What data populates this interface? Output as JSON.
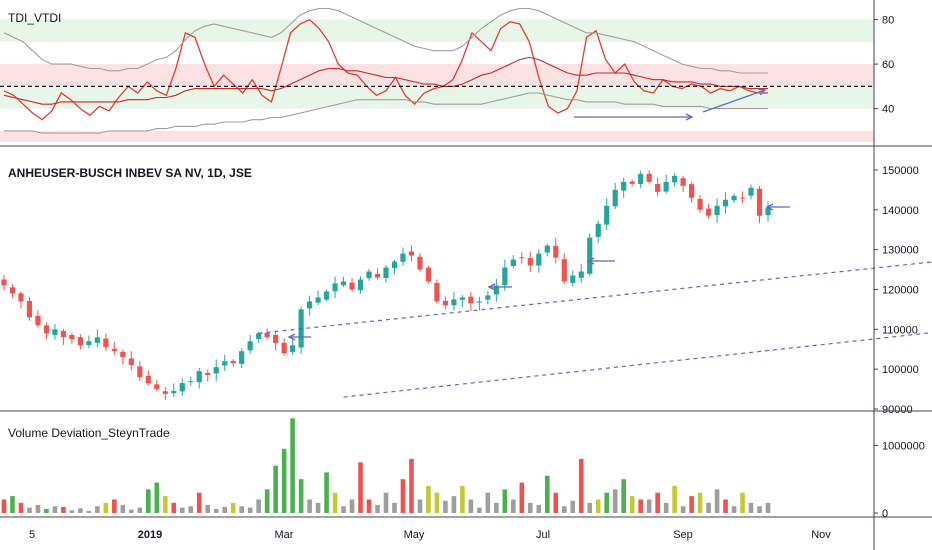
{
  "chart_data": [
    {
      "pane": "tdi",
      "type": "line",
      "title": "TDI_VTDI",
      "ylim": [
        25,
        87
      ],
      "y_ticks": [
        40,
        60,
        80
      ],
      "dashed_level": 50,
      "bands_green": [
        [
          70,
          80
        ],
        [
          40,
          50
        ]
      ],
      "bands_red": [
        [
          50,
          60
        ],
        [
          25,
          30
        ]
      ],
      "series": [
        {
          "color": "#e53935",
          "values": [
            48,
            46,
            42,
            38,
            35,
            39,
            47,
            44,
            40,
            37,
            41,
            39,
            45,
            50,
            47,
            52,
            48,
            46,
            58,
            74,
            72,
            60,
            50,
            55,
            51,
            47,
            53,
            46,
            43,
            58,
            74,
            78,
            80,
            76,
            70,
            60,
            56,
            55,
            50,
            46,
            48,
            54,
            46,
            42,
            47,
            49,
            50,
            53,
            62,
            74,
            70,
            66,
            76,
            79,
            78,
            70,
            54,
            41,
            38,
            40,
            48,
            72,
            75,
            62,
            56,
            60,
            52,
            48,
            47,
            53,
            50,
            49,
            51,
            50,
            47,
            49,
            48,
            50,
            48,
            47,
            47
          ]
        },
        {
          "color": "#c62828",
          "values": [
            46,
            45,
            44,
            43,
            42,
            42,
            43,
            43,
            43,
            43,
            43,
            43,
            43,
            44,
            44,
            44,
            45,
            45,
            46,
            48,
            49,
            49,
            49,
            49,
            49,
            49,
            49,
            49,
            48,
            49,
            51,
            53,
            55,
            57,
            58,
            58,
            57,
            57,
            56,
            55,
            54,
            54,
            53,
            52,
            51,
            51,
            50,
            50,
            51,
            53,
            55,
            56,
            58,
            60,
            62,
            63,
            62,
            60,
            58,
            56,
            55,
            55,
            56,
            56,
            56,
            56,
            55,
            54,
            53,
            53,
            52,
            52,
            52,
            51,
            51,
            50,
            50,
            50,
            49,
            49,
            49
          ]
        },
        {
          "color": "#9e9e9e",
          "values": [
            74,
            72,
            70,
            66,
            62,
            60,
            60,
            60,
            59,
            58,
            58,
            57,
            57,
            58,
            58,
            60,
            62,
            63,
            66,
            71,
            75,
            77,
            78,
            77,
            76,
            75,
            74,
            73,
            72,
            74,
            78,
            82,
            84,
            85,
            85,
            84,
            82,
            80,
            78,
            76,
            74,
            72,
            70,
            68,
            67,
            66,
            66,
            66,
            68,
            72,
            76,
            79,
            82,
            84,
            85,
            85,
            84,
            82,
            80,
            78,
            76,
            74,
            74,
            73,
            72,
            71,
            70,
            68,
            66,
            64,
            62,
            60,
            59,
            58,
            58,
            57,
            57,
            56,
            56,
            56,
            56
          ]
        },
        {
          "color": "#9e9e9e",
          "values": [
            30,
            30,
            30,
            30,
            29,
            29,
            29,
            29,
            29,
            29,
            29,
            30,
            30,
            30,
            30,
            30,
            31,
            31,
            32,
            32,
            32,
            33,
            33,
            34,
            34,
            34,
            35,
            35,
            36,
            36,
            37,
            38,
            39,
            40,
            41,
            42,
            43,
            44,
            44,
            44,
            44,
            44,
            44,
            43,
            43,
            42,
            42,
            42,
            42,
            42,
            42,
            43,
            44,
            45,
            46,
            47,
            47,
            46,
            45,
            44,
            44,
            43,
            43,
            43,
            43,
            42,
            42,
            42,
            42,
            41,
            41,
            41,
            41,
            41,
            40,
            40,
            40,
            40,
            40,
            40,
            40
          ]
        }
      ],
      "annotations": [
        "arrow-bottom-horizontal",
        "arrow-rising-divergence"
      ]
    },
    {
      "pane": "price",
      "type": "candlestick",
      "title": "ANHEUSER-BUSCH INBEV SA NV, 1D, JSE",
      "ylim": [
        90000,
        155000
      ],
      "y_ticks": [
        90000,
        100000,
        110000,
        120000,
        130000,
        140000,
        150000
      ],
      "x_labels": [
        "5",
        "2019",
        "Mar",
        "May",
        "Jul",
        "Sep",
        "Nov"
      ],
      "up_color": "#26a69a",
      "down_color": "#ef5350",
      "closes": [
        121000,
        119000,
        117000,
        113000,
        111000,
        109000,
        110000,
        108000,
        107500,
        106000,
        107000,
        108000,
        105500,
        104500,
        103000,
        101000,
        98000,
        96500,
        95000,
        93800,
        94500,
        96500,
        97000,
        99500,
        98500,
        100500,
        102000,
        101500,
        104500,
        107000,
        109000,
        108000,
        106500,
        104000,
        106000,
        115000,
        117000,
        118000,
        119500,
        121500,
        122000,
        120000,
        122500,
        124500,
        123000,
        125500,
        127000,
        129000,
        128500,
        125000,
        122000,
        117000,
        116000,
        117500,
        118000,
        116500,
        117000,
        118500,
        121000,
        125500,
        127500,
        128000,
        126000,
        129000,
        131000,
        128000,
        122000,
        123500,
        124500,
        133000,
        136500,
        141000,
        145000,
        147000,
        146500,
        149000,
        147000,
        144500,
        147000,
        148500,
        146000,
        143000,
        140000,
        138500,
        141000,
        142500,
        143500,
        143000,
        145500,
        138500,
        140500
      ],
      "channel": {
        "upper": [
          [
            30,
            109000
          ],
          [
            225,
            153000
          ]
        ],
        "lower": [
          [
            40,
            93000
          ],
          [
            250,
            142000
          ]
        ]
      },
      "annotations": [
        "arrow-mar",
        "arrow-jun",
        "arrow-jul",
        "arrow-current"
      ]
    },
    {
      "pane": "volume",
      "type": "bar",
      "title": "Volume Deviation_SteynTrade",
      "ylim": [
        0,
        1450000
      ],
      "y_ticks": [
        0,
        1000000
      ],
      "values": [
        200000,
        250000,
        150000,
        80000,
        120000,
        60000,
        100000,
        90000,
        40000,
        70000,
        30000,
        100000,
        150000,
        200000,
        120000,
        50000,
        80000,
        350000,
        450000,
        250000,
        150000,
        80000,
        100000,
        300000,
        120000,
        60000,
        90000,
        150000,
        100000,
        80000,
        200000,
        350000,
        700000,
        950000,
        1400000,
        500000,
        200000,
        150000,
        600000,
        300000,
        100000,
        200000,
        750000,
        200000,
        120000,
        300000,
        150000,
        500000,
        800000,
        200000,
        400000,
        300000,
        180000,
        250000,
        400000,
        200000,
        80000,
        300000,
        150000,
        350000,
        200000,
        450000,
        150000,
        120000,
        550000,
        300000,
        100000,
        180000,
        800000,
        150000,
        200000,
        300000,
        350000,
        500000,
        250000,
        200000,
        200000,
        300000,
        150000,
        400000,
        100000,
        250000,
        300000,
        150000,
        350000,
        200000,
        100000,
        300000,
        150000,
        100000,
        150000
      ],
      "colors": [
        "#ef5350",
        "#4caf50",
        "#ef5350",
        "#9e9e9e",
        "#9e9e9e",
        "#4caf50",
        "#9e9e9e",
        "#ef5350",
        "#9e9e9e",
        "#9e9e9e",
        "#9e9e9e",
        "#9e9e9e",
        "#c0ca33",
        "#ef5350",
        "#9e9e9e",
        "#9e9e9e",
        "#9e9e9e",
        "#4caf50",
        "#4caf50",
        "#c0ca33",
        "#ef5350",
        "#9e9e9e",
        "#9e9e9e",
        "#ef5350",
        "#9e9e9e",
        "#9e9e9e",
        "#9e9e9e",
        "#c0ca33",
        "#9e9e9e",
        "#9e9e9e",
        "#9e9e9e",
        "#4caf50",
        "#4caf50",
        "#4caf50",
        "#4caf50",
        "#4caf50",
        "#9e9e9e",
        "#9e9e9e",
        "#4caf50",
        "#c0ca33",
        "#9e9e9e",
        "#9e9e9e",
        "#ef5350",
        "#ef5350",
        "#9e9e9e",
        "#9e9e9e",
        "#9e9e9e",
        "#ef5350",
        "#ef5350",
        "#9e9e9e",
        "#c0ca33",
        "#c0ca33",
        "#9e9e9e",
        "#9e9e9e",
        "#c0ca33",
        "#9e9e9e",
        "#9e9e9e",
        "#9e9e9e",
        "#9e9e9e",
        "#4caf50",
        "#9e9e9e",
        "#ef5350",
        "#9e9e9e",
        "#9e9e9e",
        "#4caf50",
        "#ef5350",
        "#9e9e9e",
        "#9e9e9e",
        "#ef5350",
        "#9e9e9e",
        "#c0ca33",
        "#4caf50",
        "#9e9e9e",
        "#4caf50",
        "#c0ca33",
        "#ef5350",
        "#9e9e9e",
        "#ef5350",
        "#9e9e9e",
        "#c0ca33",
        "#9e9e9e",
        "#ef5350",
        "#c0ca33",
        "#9e9e9e",
        "#9e9e9e",
        "#ef5350",
        "#9e9e9e",
        "#c0ca33",
        "#9e9e9e",
        "#9e9e9e",
        "#9e9e9e"
      ]
    }
  ]
}
